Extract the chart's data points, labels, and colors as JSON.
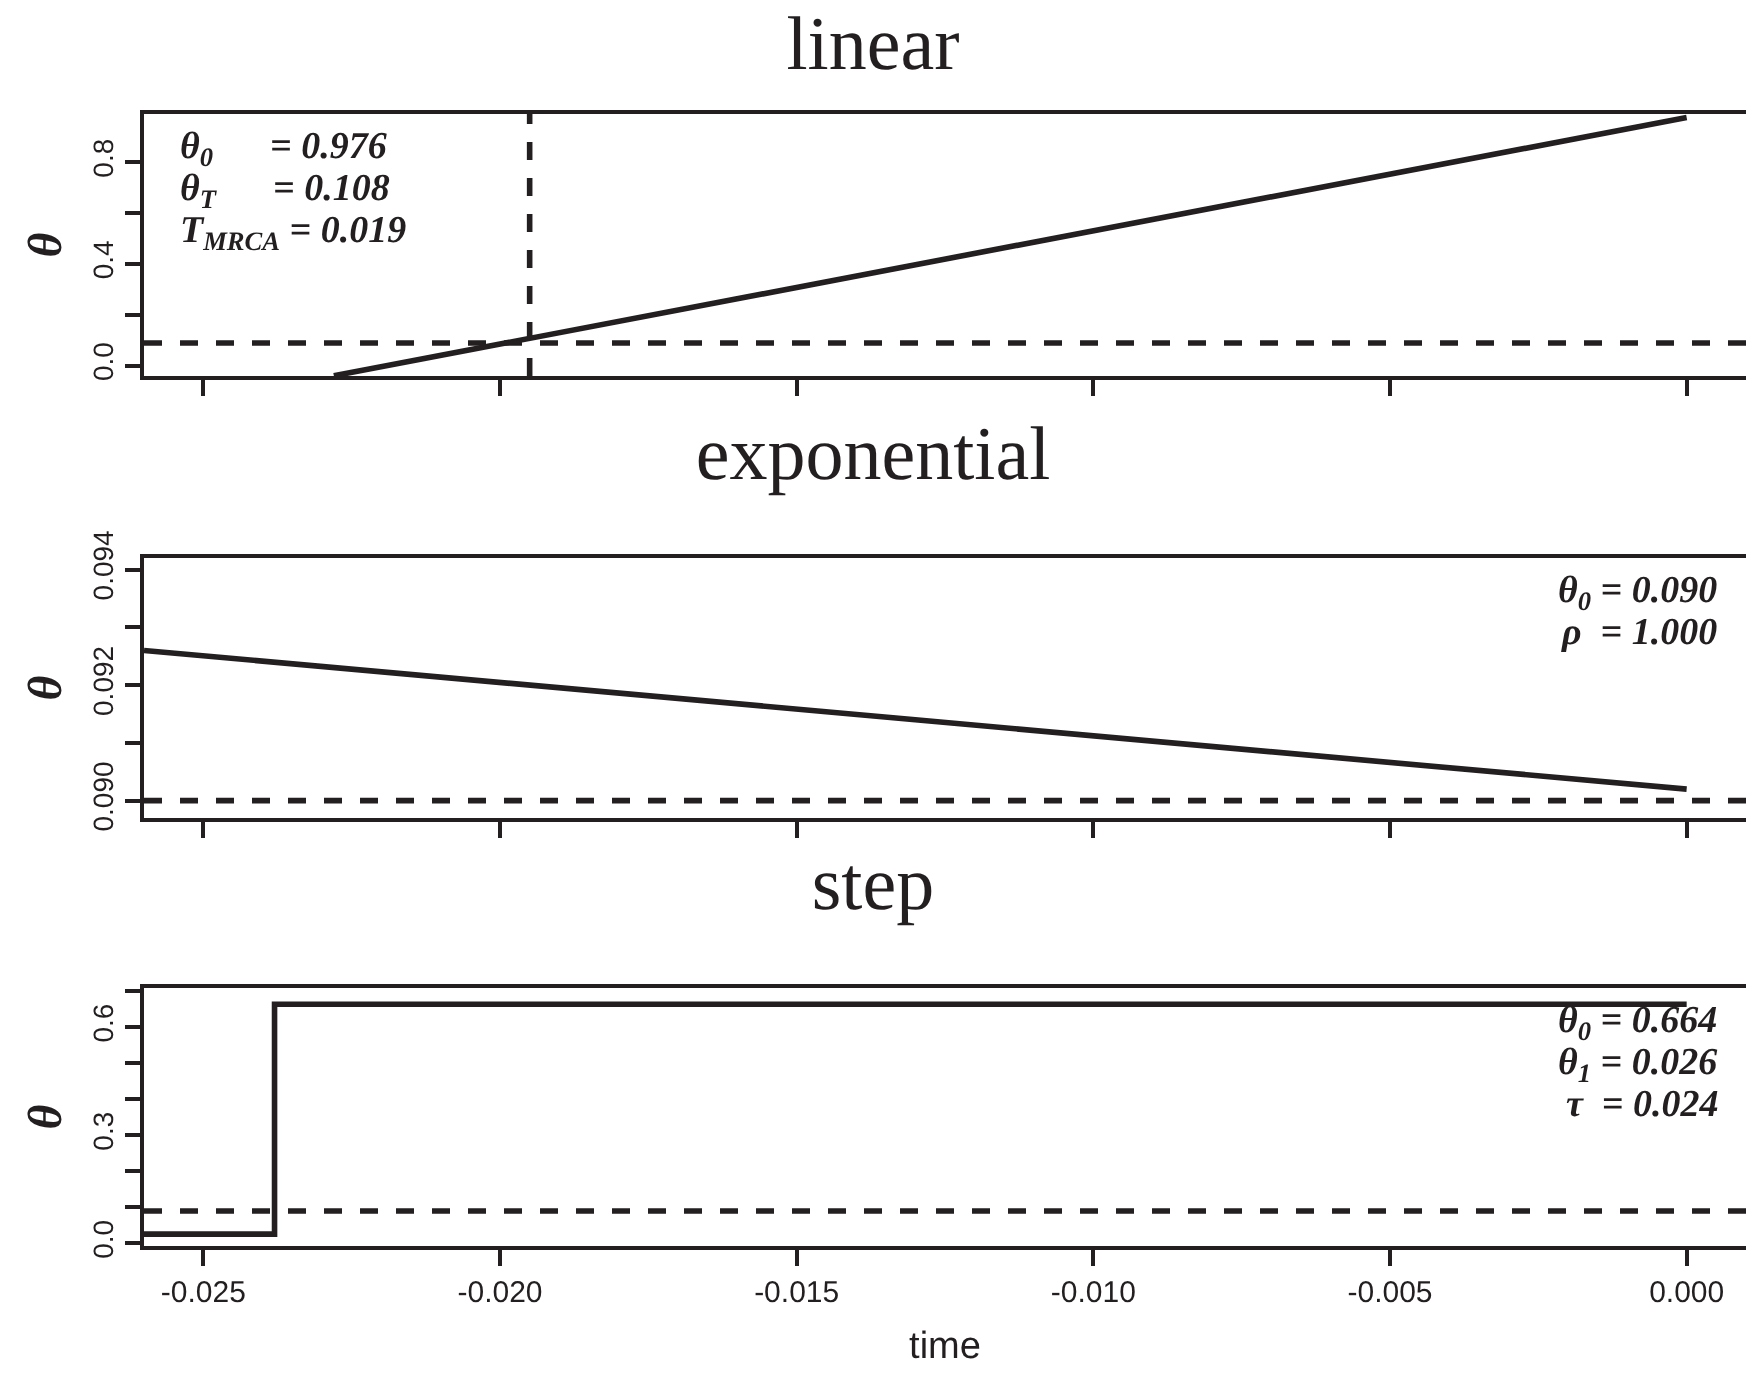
{
  "chart_data": [
    {
      "type": "line",
      "title": "linear",
      "ylabel": "θ",
      "tick_labels": "y",
      "x": [
        -0.0228,
        0
      ],
      "series": [
        {
          "color": "#231f20",
          "values": [
            -0.039,
            0.976
          ]
        }
      ],
      "xlim": [
        -0.026,
        0.001
      ],
      "xticks": [
        {
          "value": -0.025,
          "label": null
        },
        {
          "value": -0.02,
          "label": null
        },
        {
          "value": -0.015,
          "label": null
        },
        {
          "value": -0.01,
          "label": null
        },
        {
          "value": -0.005,
          "label": null
        },
        {
          "value": 0,
          "label": null
        }
      ],
      "ylim": [
        -0.04,
        0.99
      ],
      "yticks": [
        {
          "value": 0,
          "label": "0.0"
        },
        {
          "value": 0.2,
          "label": null
        },
        {
          "value": 0.4,
          "label": "0.4"
        },
        {
          "value": 0.6,
          "label": null
        },
        {
          "value": 0.8,
          "label": "0.8"
        }
      ],
      "ref_lines": [
        {
          "axis": "y",
          "value": 0.09,
          "color": "#231f20",
          "line_style": "dashed"
        },
        {
          "axis": "x",
          "value": -0.0195,
          "color": "#231f20",
          "line_style": "dashed"
        }
      ],
      "annotations": [
        "θ$_{0}$      = 0.976",
        "θ$_{T}$      = 0.108",
        "T$_{MRCA}$ = 0.019"
      ]
    },
    {
      "type": "line",
      "title": "exponential",
      "ylabel": "θ",
      "tick_labels": "y",
      "x": [
        -0.026,
        -0.013,
        0
      ],
      "series": [
        {
          "color": "#231f20",
          "values": [
            0.0926,
            0.0914,
            0.0902
          ]
        }
      ],
      "xlim": [
        -0.026,
        0.001
      ],
      "xticks": [
        {
          "value": -0.025,
          "label": null
        },
        {
          "value": -0.02,
          "label": null
        },
        {
          "value": -0.015,
          "label": null
        },
        {
          "value": -0.01,
          "label": null
        },
        {
          "value": -0.005,
          "label": null
        },
        {
          "value": 0,
          "label": null
        }
      ],
      "ylim": [
        0.0897,
        0.0942
      ],
      "yticks": [
        {
          "value": 0.09,
          "label": "0.090"
        },
        {
          "value": 0.091,
          "label": null
        },
        {
          "value": 0.092,
          "label": "0.092"
        },
        {
          "value": 0.093,
          "label": null
        },
        {
          "value": 0.094,
          "label": "0.094"
        }
      ],
      "ref_lines": [
        {
          "axis": "y",
          "value": 0.09,
          "color": "#231f20",
          "line_style": "dashed"
        }
      ],
      "annotations": [
        "θ$_{0}$ = 0.090",
        "ρ  = 1.000"
      ]
    },
    {
      "type": "step",
      "title": "step",
      "ylabel": "θ",
      "xlabel": "time",
      "x": [
        -0.026,
        -0.0238,
        0
      ],
      "series": [
        {
          "color": "#231f20",
          "values": [
            0.026,
            0.664,
            0.664
          ]
        }
      ],
      "xlim": [
        -0.026,
        0.001
      ],
      "xticks": [
        {
          "value": -0.025,
          "label": "-0.025"
        },
        {
          "value": -0.02,
          "label": "-0.020"
        },
        {
          "value": -0.015,
          "label": "-0.015"
        },
        {
          "value": -0.01,
          "label": "-0.010"
        },
        {
          "value": -0.005,
          "label": "-0.005"
        },
        {
          "value": 0,
          "label": "0.000"
        }
      ],
      "ylim": [
        -0.007,
        0.709
      ],
      "yticks": [
        {
          "value": 0,
          "label": "0.0"
        },
        {
          "value": 0.1,
          "label": null
        },
        {
          "value": 0.2,
          "label": null
        },
        {
          "value": 0.3,
          "label": "0.3"
        },
        {
          "value": 0.4,
          "label": null
        },
        {
          "value": 0.5,
          "label": null
        },
        {
          "value": 0.6,
          "label": "0.6"
        },
        {
          "value": 0.7,
          "label": null
        }
      ],
      "ref_lines": [
        {
          "axis": "y",
          "value": 0.09,
          "color": "#231f20",
          "line_style": "dashed"
        }
      ],
      "annotations": [
        "θ$_{0}$ = 0.664",
        "θ$_{1}$ = 0.026",
        "τ  = 0.024"
      ]
    }
  ]
}
